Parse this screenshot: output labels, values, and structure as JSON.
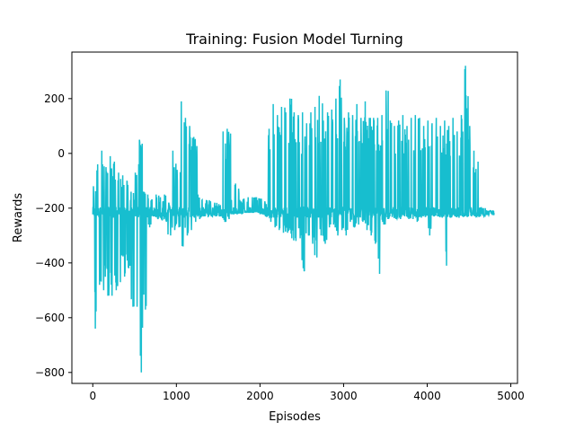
{
  "chart_data": {
    "type": "line",
    "title": "Training: Fusion Model Turning",
    "xlabel": "Episodes",
    "ylabel": "Rewards",
    "xlim": [
      -250,
      5080
    ],
    "ylim": [
      -840,
      370
    ],
    "xticks": [
      0,
      1000,
      2000,
      3000,
      4000,
      5000
    ],
    "xtick_labels": [
      "0",
      "1000",
      "2000",
      "3000",
      "4000",
      "5000"
    ],
    "yticks": [
      -800,
      -600,
      -400,
      -200,
      0,
      200
    ],
    "ytick_labels": [
      "−800",
      "−600",
      "−400",
      "−200",
      "0",
      "200"
    ],
    "grid": false,
    "color": "#17becf",
    "series": [
      {
        "x": [
          0,
          50,
          100,
          150,
          200,
          250,
          300,
          350,
          400,
          450,
          500,
          550,
          600,
          650,
          700,
          750,
          800,
          850,
          900,
          950,
          1000,
          1050,
          1100,
          1150,
          1200,
          1250,
          1300,
          1350,
          1400,
          1450,
          1500,
          1550,
          1600,
          1650,
          1700,
          1750,
          1800,
          1850,
          1900,
          1950,
          2000,
          2050,
          2100,
          2150,
          2200,
          2250,
          2300,
          2350,
          2400,
          2450,
          2500,
          2550,
          2600,
          2650,
          2700,
          2750,
          2800,
          2850,
          2900,
          2950,
          3000,
          3050,
          3100,
          3150,
          3200,
          3250,
          3300,
          3350,
          3400,
          3450,
          3500,
          3550,
          3600,
          3650,
          3700,
          3750,
          3800,
          3850,
          3900,
          3950,
          4000,
          4050,
          4100,
          4150,
          4200,
          4250,
          4300,
          4350,
          4400,
          4450,
          4500,
          4550,
          4600,
          4650,
          4700,
          4750,
          4800
        ],
        "min": [
          -640,
          -480,
          -500,
          -520,
          -520,
          -500,
          -470,
          -450,
          -420,
          -560,
          -560,
          -800,
          -570,
          -270,
          -230,
          -240,
          -245,
          -250,
          -300,
          -280,
          -270,
          -340,
          -300,
          -280,
          -250,
          -240,
          -230,
          -230,
          -230,
          -230,
          -230,
          -250,
          -240,
          -220,
          -220,
          -220,
          -215,
          -215,
          -215,
          -215,
          -220,
          -230,
          -250,
          -270,
          -280,
          -290,
          -290,
          -310,
          -320,
          -310,
          -430,
          -300,
          -330,
          -380,
          -300,
          -330,
          -270,
          -260,
          -300,
          -280,
          -300,
          -250,
          -270,
          -260,
          -250,
          -280,
          -300,
          -330,
          -440,
          -260,
          -240,
          -230,
          -240,
          -240,
          -230,
          -240,
          -240,
          -250,
          -235,
          -230,
          -300,
          -230,
          -230,
          -235,
          -410,
          -235,
          -230,
          -235,
          -230,
          -230,
          -230,
          -230,
          -230,
          -230,
          -225,
          -225,
          -225
        ],
        "max": [
          -120,
          -40,
          10,
          -50,
          -10,
          -30,
          -70,
          -80,
          -100,
          -140,
          -70,
          50,
          -140,
          -150,
          -170,
          -150,
          -160,
          -150,
          -180,
          10,
          -60,
          190,
          130,
          100,
          60,
          -150,
          -170,
          -170,
          -175,
          -180,
          -185,
          80,
          90,
          -170,
          -110,
          -170,
          -165,
          -160,
          -160,
          -160,
          -165,
          -175,
          90,
          180,
          140,
          170,
          150,
          200,
          150,
          140,
          150,
          110,
          150,
          170,
          210,
          120,
          150,
          160,
          200,
          270,
          130,
          150,
          140,
          180,
          130,
          190,
          130,
          130,
          130,
          140,
          230,
          120,
          100,
          120,
          140,
          100,
          130,
          140,
          130,
          100,
          120,
          110,
          130,
          100,
          120,
          100,
          130,
          80,
          140,
          320,
          100,
          10,
          -30,
          -200,
          -210,
          -210,
          -210
        ]
      }
    ]
  }
}
